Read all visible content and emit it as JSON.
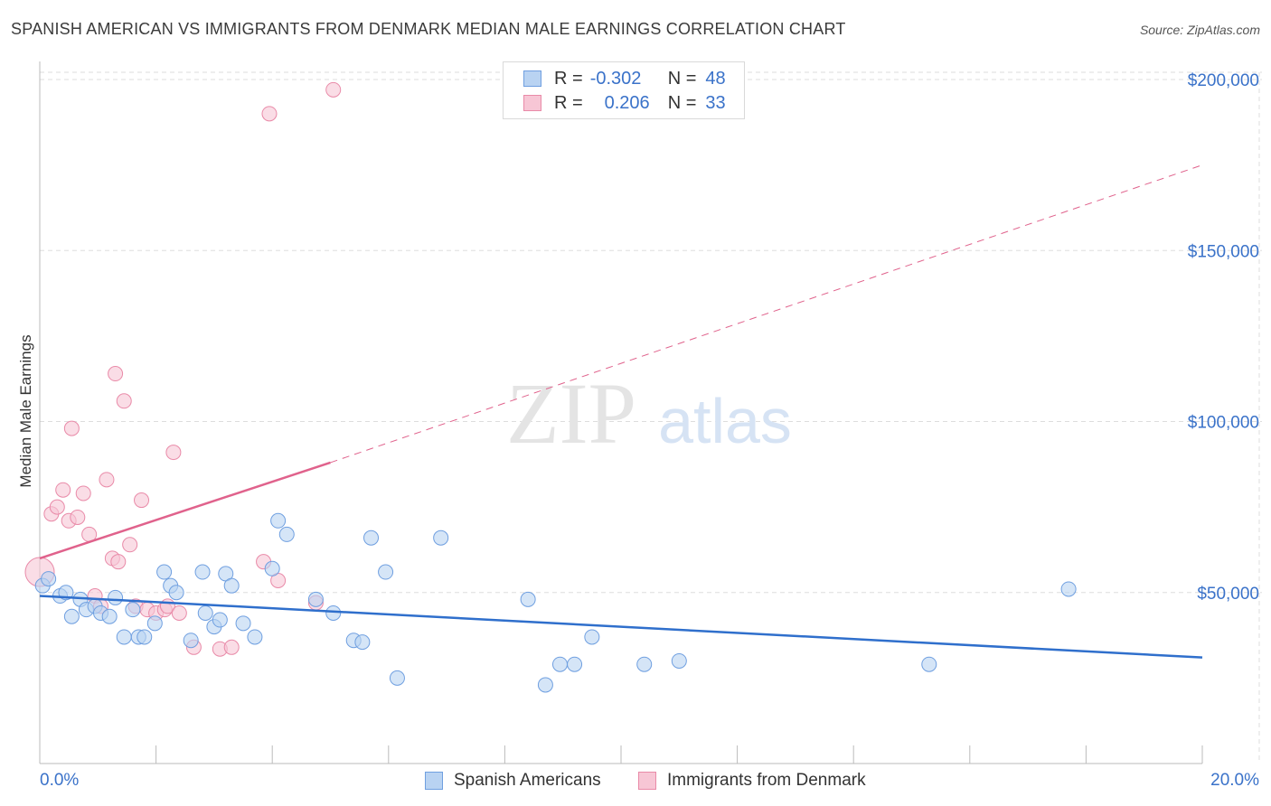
{
  "header": {
    "title": "SPANISH AMERICAN VS IMMIGRANTS FROM DENMARK MEDIAN MALE EARNINGS CORRELATION CHART",
    "source": "Source: ZipAtlas.com"
  },
  "watermark": {
    "zip": "ZIP",
    "atlas": "atlas"
  },
  "legend": {
    "r_label": "R =",
    "n_label": "N =",
    "series_a": {
      "r": "-0.302",
      "n": "48"
    },
    "series_b": {
      "r": "0.206",
      "n": "33"
    }
  },
  "colors": {
    "series_a_fill": "#b9d3f2",
    "series_a_stroke": "#6f9fe0",
    "series_a_line": "#2f6fcc",
    "series_b_fill": "#f7c6d5",
    "series_b_stroke": "#e98aa8",
    "series_b_line": "#e0628c",
    "axis_label": "#3a72c9",
    "grid": "#dddddd"
  },
  "chart_data": {
    "type": "scatter",
    "title": "SPANISH AMERICAN VS IMMIGRANTS FROM DENMARK MEDIAN MALE EARNINGS CORRELATION CHART",
    "xlabel": "",
    "ylabel": "Median Male Earnings",
    "xlim": [
      0,
      20
    ],
    "ylim": [
      0,
      200000
    ],
    "x_tick_labels": [
      "0.0%",
      "20.0%"
    ],
    "y_ticks": [
      50000,
      100000,
      150000,
      200000
    ],
    "y_tick_labels": [
      "$50,000",
      "$100,000",
      "$150,000",
      "$200,000"
    ],
    "series": [
      {
        "name": "Spanish Americans",
        "points": [
          [
            0.05,
            52000
          ],
          [
            0.15,
            54000
          ],
          [
            0.35,
            49000
          ],
          [
            0.45,
            50000
          ],
          [
            0.55,
            43000
          ],
          [
            0.7,
            48000
          ],
          [
            0.8,
            45000
          ],
          [
            0.95,
            46000
          ],
          [
            1.05,
            44000
          ],
          [
            1.2,
            43000
          ],
          [
            1.3,
            48500
          ],
          [
            1.45,
            37000
          ],
          [
            1.6,
            45000
          ],
          [
            1.7,
            37000
          ],
          [
            1.8,
            37000
          ],
          [
            1.98,
            41000
          ],
          [
            2.14,
            56000
          ],
          [
            2.25,
            52000
          ],
          [
            2.35,
            50000
          ],
          [
            2.6,
            36000
          ],
          [
            2.8,
            56000
          ],
          [
            2.85,
            44000
          ],
          [
            3.0,
            40000
          ],
          [
            3.1,
            42000
          ],
          [
            3.2,
            55500
          ],
          [
            3.3,
            52000
          ],
          [
            3.5,
            41000
          ],
          [
            3.7,
            37000
          ],
          [
            4.0,
            57000
          ],
          [
            4.1,
            71000
          ],
          [
            4.25,
            67000
          ],
          [
            4.75,
            48000
          ],
          [
            5.05,
            44000
          ],
          [
            5.4,
            36000
          ],
          [
            5.55,
            35500
          ],
          [
            5.7,
            66000
          ],
          [
            5.95,
            56000
          ],
          [
            6.15,
            25000
          ],
          [
            6.9,
            66000
          ],
          [
            8.4,
            48000
          ],
          [
            8.7,
            23000
          ],
          [
            8.95,
            29000
          ],
          [
            9.2,
            29000
          ],
          [
            9.5,
            37000
          ],
          [
            10.4,
            29000
          ],
          [
            11.0,
            30000
          ],
          [
            15.3,
            29000
          ],
          [
            17.7,
            51000
          ]
        ]
      },
      {
        "name": "Immigrants from Denmark",
        "points": [
          [
            0.0,
            56000
          ],
          [
            0.2,
            73000
          ],
          [
            0.3,
            75000
          ],
          [
            0.4,
            80000
          ],
          [
            0.5,
            71000
          ],
          [
            0.55,
            98000
          ],
          [
            0.65,
            72000
          ],
          [
            0.75,
            79000
          ],
          [
            0.85,
            67000
          ],
          [
            0.95,
            49000
          ],
          [
            1.05,
            46000
          ],
          [
            1.15,
            83000
          ],
          [
            1.25,
            60000
          ],
          [
            1.3,
            114000
          ],
          [
            1.35,
            59000
          ],
          [
            1.45,
            106000
          ],
          [
            1.55,
            64000
          ],
          [
            1.65,
            46000
          ],
          [
            1.75,
            77000
          ],
          [
            1.85,
            45000
          ],
          [
            2.0,
            44000
          ],
          [
            2.15,
            45000
          ],
          [
            2.2,
            46000
          ],
          [
            2.3,
            91000
          ],
          [
            2.4,
            44000
          ],
          [
            2.65,
            34000
          ],
          [
            3.1,
            33500
          ],
          [
            3.3,
            34000
          ],
          [
            3.85,
            59000
          ],
          [
            3.95,
            190000
          ],
          [
            4.1,
            53500
          ],
          [
            4.75,
            47000
          ],
          [
            5.05,
            197000
          ]
        ]
      }
    ],
    "trend_lines": [
      {
        "series": "Spanish Americans",
        "from": [
          0,
          49000
        ],
        "to": [
          20,
          31000
        ],
        "style": "solid"
      },
      {
        "series": "Immigrants from Denmark",
        "from": [
          0,
          60000
        ],
        "to": [
          5.0,
          88000
        ],
        "style": "solid"
      },
      {
        "series": "Immigrants from Denmark",
        "from": [
          5.0,
          88000
        ],
        "to": [
          20,
          175000
        ],
        "style": "dashed"
      }
    ]
  },
  "bottom_legend": {
    "series_a": "Spanish Americans",
    "series_b": "Immigrants from Denmark"
  }
}
